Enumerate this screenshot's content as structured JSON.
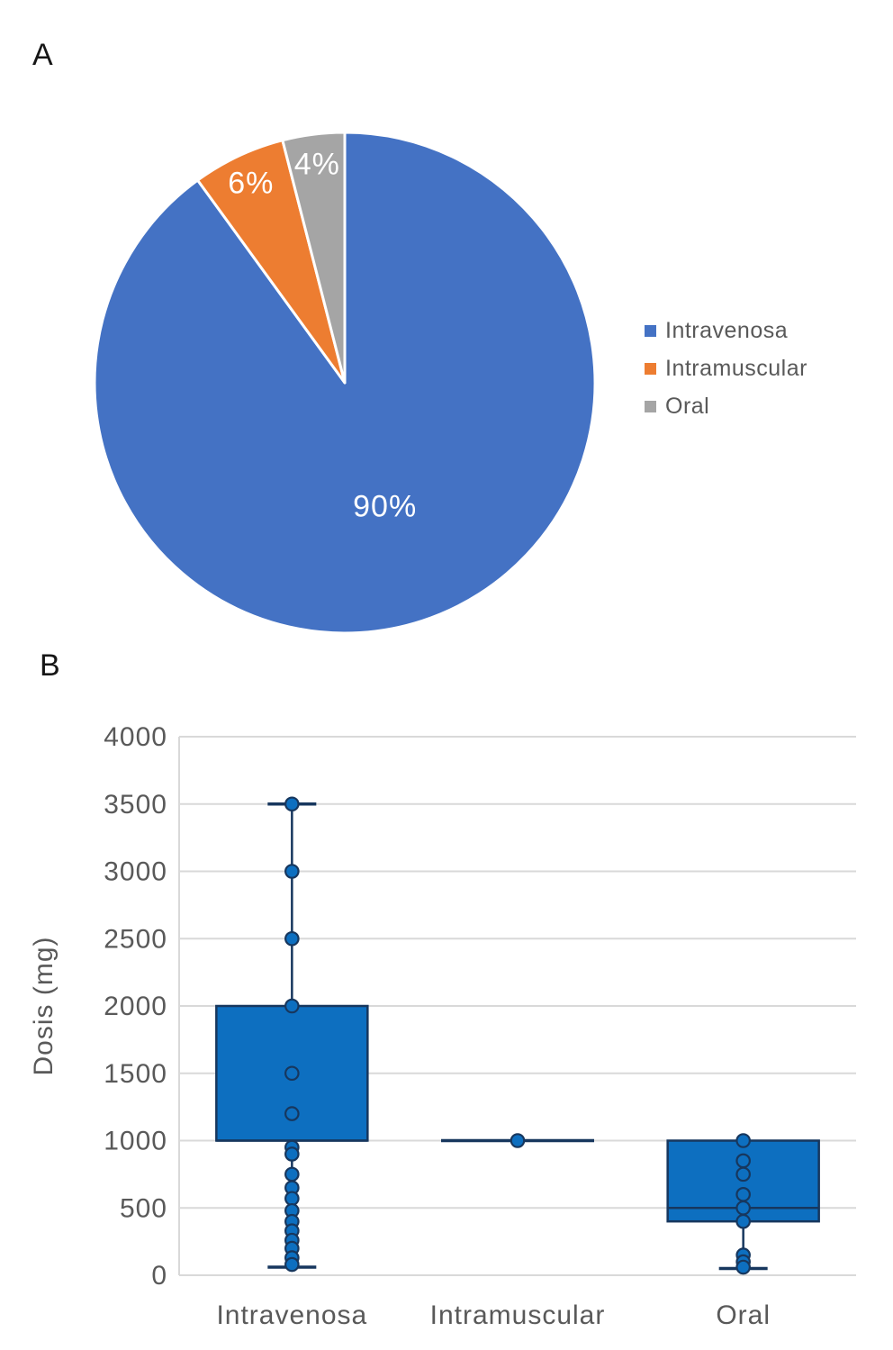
{
  "panels": {
    "a": "A",
    "b": "B"
  },
  "chart_data": [
    {
      "type": "pie",
      "panel": "A",
      "title": "",
      "unit": "%",
      "legend_position": "right",
      "label_color": "#ffffff",
      "separator_color": "#ffffff",
      "slices": [
        {
          "label": "Intravenosa",
          "value": 90,
          "color": "#4472c4",
          "data_label": "90%"
        },
        {
          "label": "Intramuscular",
          "value": 6,
          "color": "#ed7d31",
          "data_label": "6%"
        },
        {
          "label": "Oral",
          "value": 4,
          "color": "#a5a5a5",
          "data_label": "4%"
        }
      ]
    },
    {
      "type": "box",
      "panel": "B",
      "ylabel": "Dosis (mg)",
      "ylim": [
        0,
        4000
      ],
      "yticks": [
        0,
        500,
        1000,
        1500,
        2000,
        2500,
        3000,
        3500,
        4000
      ],
      "grid": true,
      "categories": [
        "Intravenosa",
        "Intramuscular",
        "Oral"
      ],
      "series": [
        {
          "name": "Intravenosa",
          "min": 60,
          "q1": 1000,
          "median": 1000,
          "q3": 2000,
          "max": 3500,
          "points": [
            3500,
            3000,
            2500,
            2000,
            1500,
            1200,
            950,
            900,
            750,
            650,
            570,
            480,
            400,
            330,
            260,
            200,
            130,
            80
          ]
        },
        {
          "name": "Intramuscular",
          "min": 1000,
          "q1": 1000,
          "median": 1000,
          "q3": 1000,
          "max": 1000,
          "points": [
            1000
          ]
        },
        {
          "name": "Oral",
          "min": 50,
          "q1": 400,
          "median": 500,
          "q3": 1000,
          "max": 1000,
          "points": [
            1000,
            850,
            750,
            600,
            500,
            400,
            150,
            100,
            60
          ]
        }
      ],
      "colors": {
        "box_fill": "#0d6fc0",
        "box_stroke": "#17375e",
        "grid": "#d9d9d9",
        "text": "#595959"
      }
    }
  ]
}
